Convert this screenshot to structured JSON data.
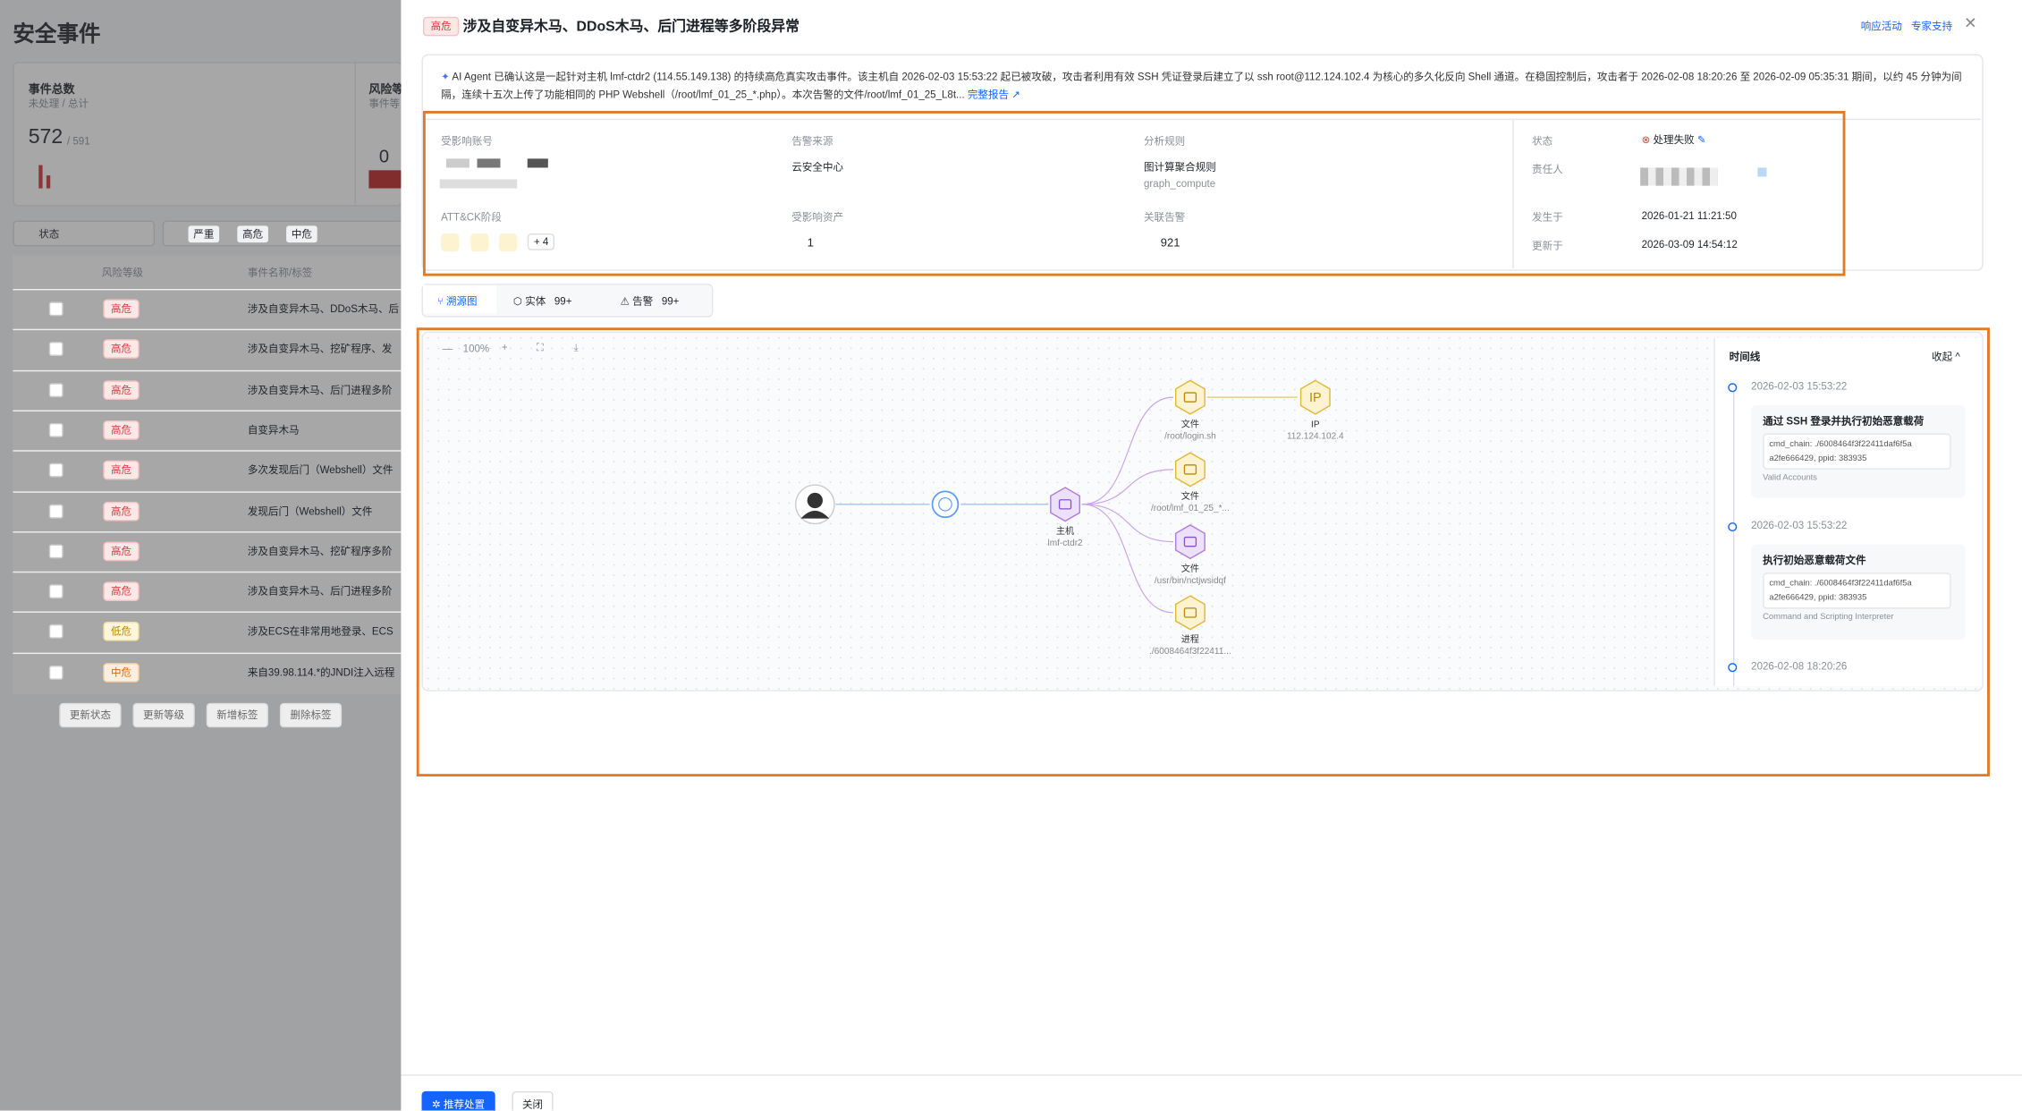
{
  "page": {
    "title": "安全事件"
  },
  "stats": [
    {
      "label": "事件总数",
      "sub": "未处理 / 总计",
      "value": "572",
      "total": "/ 591"
    },
    {
      "label": "风险等",
      "sub": "事件等",
      "value": "0"
    }
  ],
  "filters": {
    "status": "状态",
    "tags": [
      "严重",
      "高危",
      "中危"
    ]
  },
  "table": {
    "headers": [
      "风险等级",
      "事件名称/标签"
    ],
    "rows": [
      [
        "高危",
        "涉及自变异木马、DDoS木马、后"
      ],
      [
        "高危",
        "涉及自变异木马、挖矿程序、发"
      ],
      [
        "高危",
        "涉及自变异木马、后门进程多阶"
      ],
      [
        "高危",
        "自变异木马"
      ],
      [
        "高危",
        "多次发现后门（Webshell）文件"
      ],
      [
        "高危",
        "发现后门（Webshell）文件"
      ],
      [
        "高危",
        "涉及自变异木马、挖矿程序多阶"
      ],
      [
        "高危",
        "涉及自变异木马、后门进程多阶"
      ],
      [
        "低危",
        "涉及ECS在非常用地登录、ECS"
      ],
      [
        "中危",
        "来自39.98.114.*的JNDI注入远程"
      ]
    ]
  },
  "bulk_actions": [
    "更新状态",
    "更新等级",
    "新增标签",
    "删除标签"
  ],
  "drawer": {
    "severity": "高危",
    "title": "涉及自变异木马、DDoS木马、后门进程等多阶段异常",
    "actions": [
      "响应活动",
      "专家支持"
    ],
    "summary": "AI Agent 已确认这是一起针对主机 lmf-ctdr2 (114.55.149.138) 的持续高危真实攻击事件。该主机自 2026-02-03 15:53:22 起已被攻破，攻击者利用有效 SSH 凭证登录后建立了以 ssh root@112.124.102.4 为核心的多久化反向 Shell 通道。在稳固控制后，攻击者于 2026-02-08 18:20:26 至 2026-02-09 05:35:31 期间，以约 45 分钟为间隔，连续十五次上传了功能相同的 PHP Webshell（/root/lmf_01_25_*.php）。本次告警的文件/root/lmf_01_25_L8t...",
    "report_link": "完整报告 ↗",
    "fields": {
      "account_label": "受影响账号",
      "source_label": "告警来源",
      "source": "云安全中心",
      "rule_label": "分析规则",
      "rule": "图计算聚合规则",
      "rule_id": "graph_compute",
      "status_label": "状态",
      "status": "处理失败",
      "owner_label": "责任人",
      "attck_label": "ATT&CK阶段",
      "attck_more": "+ 4",
      "asset_label": "受影响资产",
      "asset": "1",
      "alert_label": "关联告警",
      "alert": "921",
      "occurred_label": "发生于",
      "occurred": "2026-01-21 11:21:50",
      "updated_label": "更新于",
      "updated": "2026-03-09 14:54:12"
    },
    "tabs": [
      {
        "label": "溯源图"
      },
      {
        "label": "实体",
        "count": "99+"
      },
      {
        "label": "告警",
        "count": "99+"
      }
    ],
    "zoom": "100%",
    "graph": {
      "nodes": [
        {
          "type": "主机",
          "name": "lmf-ctdr2"
        },
        {
          "type": "文件",
          "name": "/root/login.sh"
        },
        {
          "type": "IP",
          "name": "112.124.102.4",
          "icon": "IP"
        },
        {
          "type": "文件",
          "name": "/root/lmf_01_25_*..."
        },
        {
          "type": "文件",
          "name": "/usr/bin/nctjwsidqf"
        },
        {
          "type": "进程",
          "name": "./6008464f3f22411..."
        }
      ]
    },
    "timeline": {
      "title": "时间线",
      "toggle": "收起",
      "entries": [
        {
          "time": "2026-02-03 15:53:22",
          "title": "通过 SSH 登录并执行初始恶意载荷",
          "cmd": "cmd_chain: ./6008464f3f22411daf6f5a a2fe666429, ppid: 383935",
          "tag": "Valid Accounts"
        },
        {
          "time": "2026-02-03 15:53:22",
          "title": "执行初始恶意载荷文件",
          "cmd": "cmd_chain: ./6008464f3f22411daf6f5a a2fe666429, ppid: 383935",
          "tag": "Command and Scripting Interpreter"
        },
        {
          "time": "2026-02-08 18:20:26"
        }
      ]
    },
    "footer": {
      "primary": "推荐处置",
      "secondary": "关闭"
    }
  }
}
